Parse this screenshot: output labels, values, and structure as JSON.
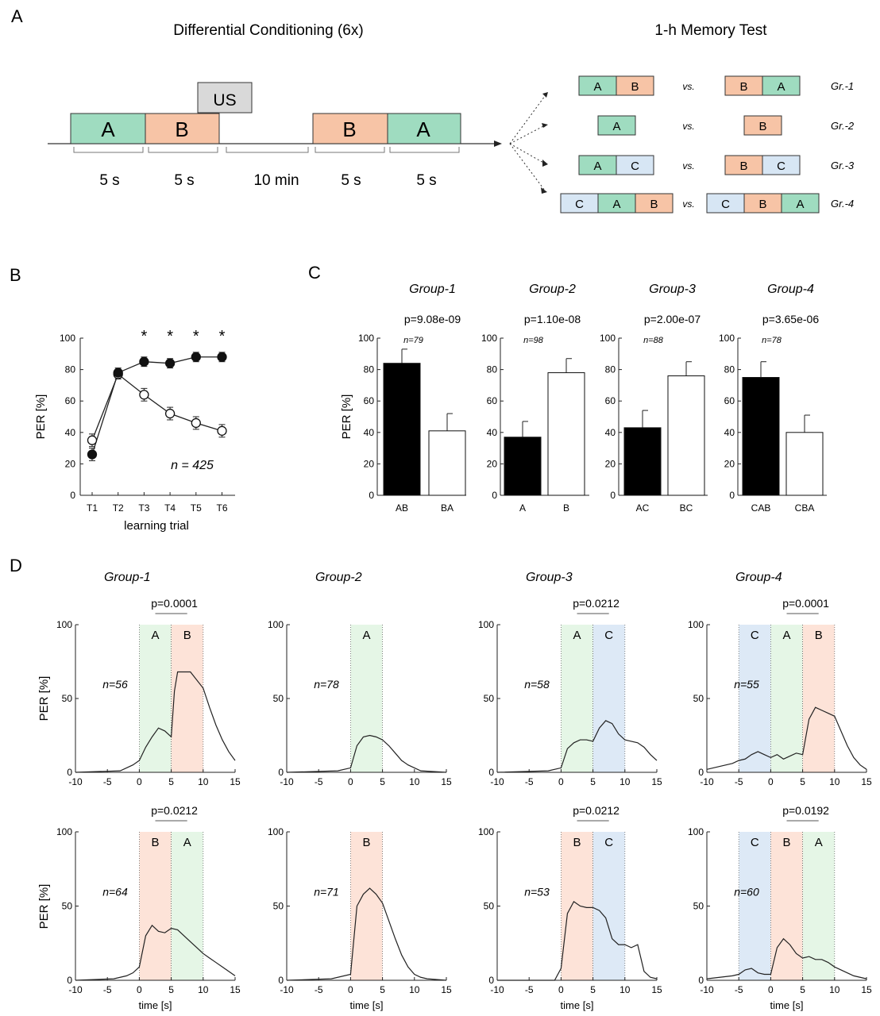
{
  "panel_letters": [
    "A",
    "B",
    "C",
    "D"
  ],
  "colors": {
    "A": "#9fdcc0",
    "B": "#f7c4a6",
    "C": "#d7e6f4",
    "US": "#d9d9d9",
    "A_shade": "#e5f6e6",
    "B_shade": "#fde3d8",
    "C_shade": "#dde9f6"
  },
  "panel_a": {
    "title_left": "Differential Conditioning (6x)",
    "title_right": "1-h Memory Test",
    "us_label": "US",
    "sequence": [
      "A",
      "B",
      "B",
      "A"
    ],
    "durations": [
      "5 s",
      "5 s",
      "10 min",
      "5 s",
      "5 s"
    ],
    "vs_label": "vs.",
    "tests": [
      {
        "group": "Gr.-1",
        "left": [
          "A",
          "B"
        ],
        "right": [
          "B",
          "A"
        ]
      },
      {
        "group": "Gr.-2",
        "left": [
          "A"
        ],
        "right": [
          "B"
        ]
      },
      {
        "group": "Gr.-3",
        "left": [
          "A",
          "C"
        ],
        "right": [
          "B",
          "C"
        ]
      },
      {
        "group": "Gr.-4",
        "left": [
          "C",
          "A",
          "B"
        ],
        "right": [
          "C",
          "B",
          "A"
        ]
      }
    ]
  },
  "chart_data": [
    {
      "id": "B",
      "type": "line",
      "categories": [
        "T1",
        "T2",
        "T3",
        "T4",
        "T5",
        "T6"
      ],
      "series": [
        {
          "marker": "filled",
          "values": [
            26,
            78,
            85,
            84,
            88,
            88
          ],
          "errors": [
            4,
            3,
            3,
            3,
            3,
            3
          ]
        },
        {
          "marker": "open",
          "values": [
            35,
            77,
            64,
            52,
            46,
            41
          ],
          "errors": [
            4,
            3,
            4,
            4,
            4,
            4
          ]
        }
      ],
      "ylim": [
        0,
        100
      ],
      "yticks": [
        "0",
        "20",
        "40",
        "60",
        "80",
        "100"
      ],
      "ylabel": "PER [%]",
      "xlabel": "learning trial",
      "annotation": "n = 425",
      "significance": [
        "",
        "",
        "*",
        "*",
        "*",
        "*"
      ],
      "legend": "none"
    },
    {
      "id": "C",
      "type": "bar",
      "ylabel": "PER [%]",
      "ylim": [
        0,
        100
      ],
      "yticks": [
        "0",
        "20",
        "40",
        "60",
        "80",
        "100"
      ],
      "groups": [
        {
          "title": "Group-1",
          "p": "p=9.08e-09",
          "n": "n=79",
          "categories": [
            "AB",
            "BA"
          ],
          "values": [
            84,
            41
          ],
          "errors": [
            9,
            11
          ]
        },
        {
          "title": "Group-2",
          "p": "p=1.10e-08",
          "n": "n=98",
          "categories": [
            "A",
            "B"
          ],
          "values": [
            37,
            78
          ],
          "errors": [
            10,
            9
          ]
        },
        {
          "title": "Group-3",
          "p": "p=2.00e-07",
          "n": "n=88",
          "categories": [
            "AC",
            "BC"
          ],
          "values": [
            43,
            76
          ],
          "errors": [
            11,
            9
          ]
        },
        {
          "title": "Group-4",
          "p": "p=3.65e-06",
          "n": "n=78",
          "categories": [
            "CAB",
            "CBA"
          ],
          "values": [
            75,
            40
          ],
          "errors": [
            10,
            11
          ]
        }
      ]
    },
    {
      "id": "D",
      "type": "line",
      "xlabel": "time [s]",
      "ylabel": "PER [%]",
      "xlim": [
        -10,
        15
      ],
      "ylim": [
        0,
        100
      ],
      "xticks": [
        "-10",
        "-5",
        "0",
        "5",
        "10",
        "15"
      ],
      "yticks": [
        "0",
        "50",
        "100"
      ],
      "group_titles": [
        "Group-1",
        "Group-2",
        "Group-3",
        "Group-4"
      ],
      "subplots": [
        {
          "row": 0,
          "col": 0,
          "n": "n=56",
          "p": "p=0.0001",
          "windows": [
            "A",
            "B"
          ],
          "start": 0,
          "x": [
            -10,
            -3,
            -2,
            -1,
            0,
            1,
            2,
            3,
            4,
            5,
            5.5,
            6,
            8,
            10,
            11,
            12,
            13,
            14,
            15
          ],
          "y": [
            0,
            1,
            3,
            5,
            8,
            17,
            24,
            30,
            28,
            24,
            55,
            68,
            68,
            57,
            44,
            32,
            22,
            14,
            8
          ]
        },
        {
          "row": 0,
          "col": 1,
          "n": "n=78",
          "p": "",
          "windows": [
            "A"
          ],
          "start": 0,
          "x": [
            -10,
            -2,
            0,
            1,
            2,
            3,
            4,
            5,
            6,
            7,
            8,
            9,
            10,
            11,
            15
          ],
          "y": [
            0,
            1,
            3,
            18,
            24,
            25,
            24,
            22,
            18,
            13,
            8,
            5,
            3,
            1,
            0
          ]
        },
        {
          "row": 0,
          "col": 2,
          "n": "n=58",
          "p": "p=0.0212",
          "windows": [
            "A",
            "C"
          ],
          "start": 0,
          "x": [
            -10,
            -2,
            0,
            1,
            2,
            3,
            4,
            5,
            6,
            7,
            8,
            9,
            10,
            11,
            12,
            13,
            14,
            15
          ],
          "y": [
            0,
            1,
            3,
            16,
            20,
            22,
            22,
            21,
            30,
            35,
            33,
            26,
            22,
            21,
            20,
            17,
            12,
            8
          ]
        },
        {
          "row": 0,
          "col": 3,
          "n": "n=55",
          "p": "p=0.0001",
          "windows": [
            "C",
            "A",
            "B"
          ],
          "start": -5,
          "x": [
            -10,
            -8,
            -6,
            -5,
            -4,
            -3,
            -2,
            -1,
            0,
            1,
            2,
            3,
            4,
            5,
            6,
            7,
            8,
            9,
            10,
            11,
            12,
            13,
            14,
            15
          ],
          "y": [
            2,
            4,
            6,
            8,
            9,
            12,
            14,
            12,
            10,
            12,
            9,
            11,
            13,
            12,
            36,
            44,
            42,
            40,
            38,
            28,
            18,
            10,
            5,
            2
          ]
        },
        {
          "row": 1,
          "col": 0,
          "n": "n=64",
          "p": "p=0.0212",
          "windows": [
            "B",
            "A"
          ],
          "start": 0,
          "x": [
            -10,
            -4,
            -2,
            -1,
            0,
            1,
            2,
            3,
            4,
            5,
            6,
            7,
            8,
            9,
            10,
            11,
            12,
            13,
            14,
            15
          ],
          "y": [
            0,
            1,
            3,
            5,
            9,
            30,
            37,
            33,
            32,
            35,
            34,
            30,
            26,
            22,
            18,
            15,
            12,
            9,
            6,
            3
          ]
        },
        {
          "row": 1,
          "col": 1,
          "n": "n=71",
          "p": "",
          "windows": [
            "B"
          ],
          "start": 0,
          "x": [
            -10,
            -3,
            0,
            1,
            2,
            3,
            4,
            5,
            6,
            7,
            8,
            9,
            10,
            11,
            12,
            15
          ],
          "y": [
            0,
            1,
            4,
            50,
            58,
            62,
            58,
            52,
            40,
            28,
            17,
            9,
            4,
            2,
            1,
            0
          ]
        },
        {
          "row": 1,
          "col": 2,
          "n": "n=53",
          "p": "p=0.0212",
          "windows": [
            "B",
            "C"
          ],
          "start": 0,
          "x": [
            -10,
            -1,
            0,
            1,
            2,
            3,
            4,
            5,
            6,
            7,
            8,
            9,
            10,
            11,
            12,
            13,
            14,
            15
          ],
          "y": [
            0,
            0,
            8,
            45,
            53,
            50,
            49,
            49,
            47,
            42,
            28,
            24,
            24,
            22,
            24,
            6,
            2,
            1
          ]
        },
        {
          "row": 1,
          "col": 3,
          "n": "n=60",
          "p": "p=0.0192",
          "windows": [
            "C",
            "B",
            "A"
          ],
          "start": -5,
          "x": [
            -10,
            -6,
            -5,
            -4,
            -3,
            -2,
            -1,
            0,
            1,
            2,
            3,
            4,
            5,
            6,
            7,
            8,
            9,
            10,
            11,
            12,
            13,
            14,
            15
          ],
          "y": [
            1,
            3,
            4,
            7,
            8,
            5,
            4,
            4,
            22,
            28,
            24,
            18,
            15,
            16,
            14,
            14,
            12,
            9,
            7,
            5,
            3,
            2,
            1
          ]
        }
      ]
    }
  ]
}
